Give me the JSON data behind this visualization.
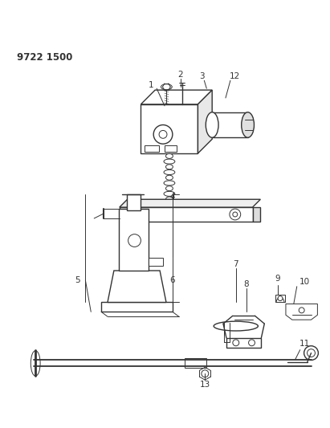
{
  "title": "9722 1500",
  "background_color": "#ffffff",
  "line_color": "#333333",
  "title_fontsize": 8.5,
  "title_fontweight": "bold"
}
